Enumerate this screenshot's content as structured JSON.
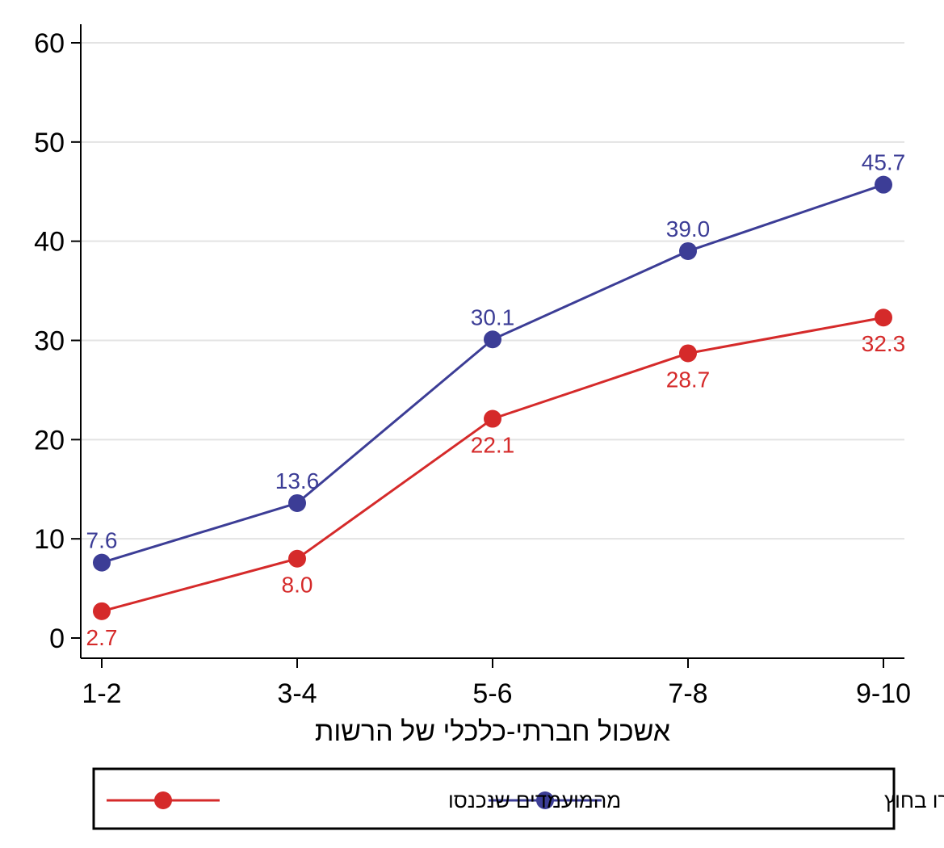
{
  "chart_data": {
    "type": "line",
    "title": "",
    "xlabel": "אשכול חברתי-כלכלי של הרשות",
    "ylabel": "",
    "categories": [
      "1-2",
      "3-4",
      "5-6",
      "7-8",
      "9-10"
    ],
    "ylim": [
      0,
      60
    ],
    "yticks": [
      0,
      10,
      20,
      30,
      40,
      50,
      60
    ],
    "grid": true,
    "legend_position": "bottom",
    "series": [
      {
        "name": "מהמועמדים שנותרו בחוץ",
        "color": "#3c3d96",
        "values": [
          7.6,
          13.6,
          30.1,
          39.0,
          45.7
        ],
        "labels": [
          "7.6",
          "13.6",
          "30.1",
          "39.0",
          "45.7"
        ],
        "label_position": "above"
      },
      {
        "name": "מהמועמדים שנכנסו",
        "color": "#d52a2a",
        "values": [
          2.7,
          8.0,
          22.1,
          28.7,
          32.3
        ],
        "labels": [
          "2.7",
          "8.0",
          "22.1",
          "28.7",
          "32.3"
        ],
        "label_position": "below"
      }
    ]
  }
}
